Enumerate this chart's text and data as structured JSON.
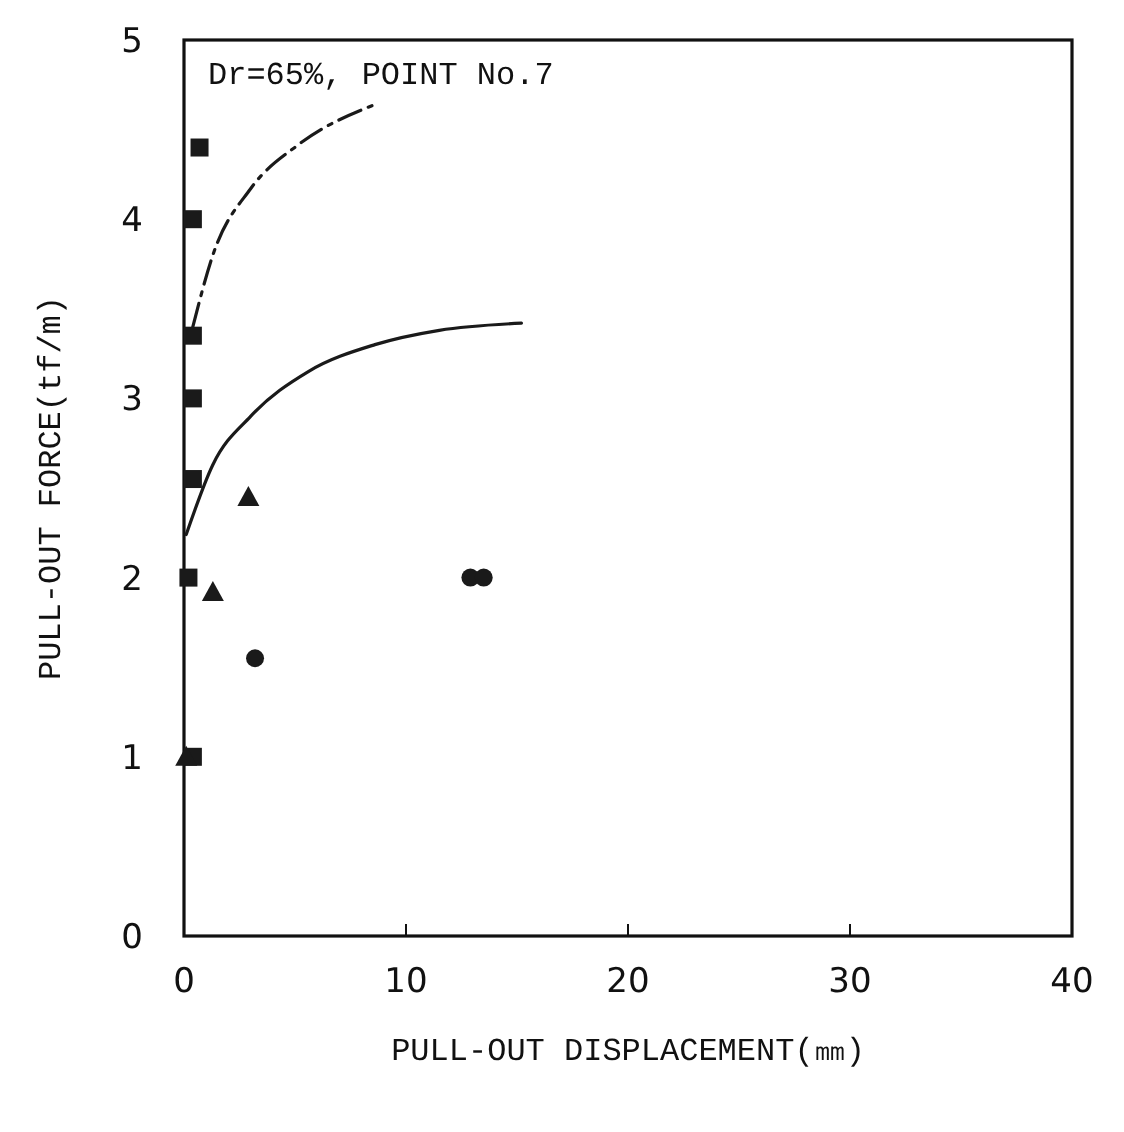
{
  "chart_data": {
    "type": "scatter",
    "xlabel": "PULL-OUT DISPLACEMENT(㎜)",
    "ylabel": "PULL-OUT FORCE(tf/m)",
    "annotations": [
      "Dr=65%, POINT No.7"
    ],
    "xlim": [
      0,
      40
    ],
    "ylim": [
      0,
      5
    ],
    "xticks": [
      0,
      10,
      20,
      30,
      40
    ],
    "yticks": [
      0,
      1,
      2,
      3,
      4,
      5
    ],
    "grid": false,
    "series": [
      {
        "marker": "square",
        "color": "#1a1a1a",
        "x": [
          0.7,
          0.4,
          0.4,
          0.4,
          0.4,
          0.2,
          0.4
        ],
        "values": [
          4.4,
          4.0,
          3.35,
          3.0,
          2.55,
          2.0,
          1.0
        ]
      },
      {
        "marker": "triangle",
        "color": "#1a1a1a",
        "x": [
          2.9,
          1.3,
          0.1
        ],
        "values": [
          2.45,
          1.92,
          1.0
        ]
      },
      {
        "marker": "circle",
        "color": "#1a1a1a",
        "x": [
          3.2,
          12.9,
          13.5
        ],
        "values": [
          1.55,
          2.0,
          2.0
        ]
      },
      {
        "type": "line",
        "marker": "none",
        "line_style": "dashed",
        "color": "#1a1a1a",
        "x": [
          0.4,
          1.3,
          3.0,
          5.2,
          8.6
        ],
        "values": [
          3.4,
          3.8,
          4.17,
          4.42,
          4.64
        ]
      },
      {
        "type": "line",
        "marker": "none",
        "line_style": "solid",
        "color": "#1a1a1a",
        "x": [
          0.1,
          1.3,
          3.0,
          5.6,
          8.6,
          11.5,
          15.2
        ],
        "values": [
          2.24,
          2.63,
          2.9,
          3.15,
          3.3,
          3.38,
          3.42
        ]
      }
    ]
  }
}
